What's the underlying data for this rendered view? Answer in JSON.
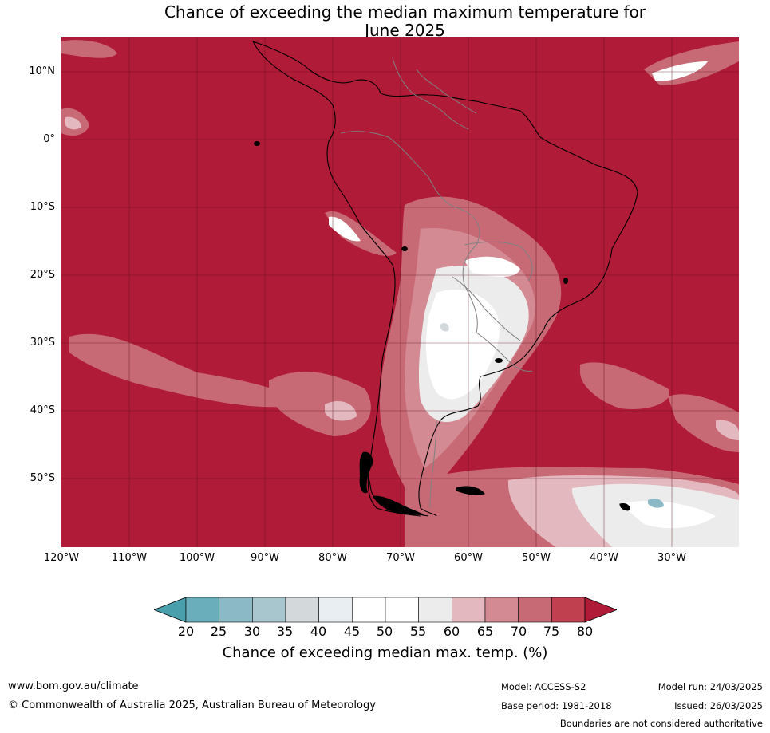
{
  "title_line1": "Chance of exceeding the median maximum temperature for",
  "title_line2": "June 2025",
  "map": {
    "extent": {
      "lon_min": -120,
      "lon_max": -20,
      "lat_min": -60,
      "lat_max": 15
    },
    "gridlines": true,
    "lat_labels": [
      "10°N",
      "0°",
      "10°S",
      "20°S",
      "30°S",
      "40°S",
      "50°S"
    ],
    "lon_labels": [
      "120°W",
      "110°W",
      "100°W",
      "90°W",
      "80°W",
      "70°W",
      "60°W",
      "50°W",
      "40°W",
      "30°W"
    ],
    "background_color": "#b01b37"
  },
  "colorbar": {
    "ticks": [
      "20",
      "25",
      "30",
      "35",
      "40",
      "45",
      "50",
      "55",
      "60",
      "65",
      "70",
      "75",
      "80"
    ],
    "colors": [
      "#4a9fad",
      "#6aaebc",
      "#8bbac6",
      "#a8c6cd",
      "#d3d8db",
      "#e8eef1",
      "#ffffff",
      "#ffffff",
      "#ececec",
      "#e3b9bf",
      "#d48a93",
      "#c86a76",
      "#c0404f",
      "#b01b37"
    ],
    "label": "Chance of exceeding median max. temp. (%)"
  },
  "footer": {
    "website": "www.bom.gov.au/climate",
    "copyright": "© Commonwealth of Australia 2025, Australian Bureau of Meteorology",
    "model": "Model: ACCESS-S2",
    "base_period": "Base period: 1981-2018",
    "model_run": "Model run: 24/03/2025",
    "issued": "Issued: 26/03/2025",
    "disclaimer": "Boundaries are not considered authoritative"
  }
}
